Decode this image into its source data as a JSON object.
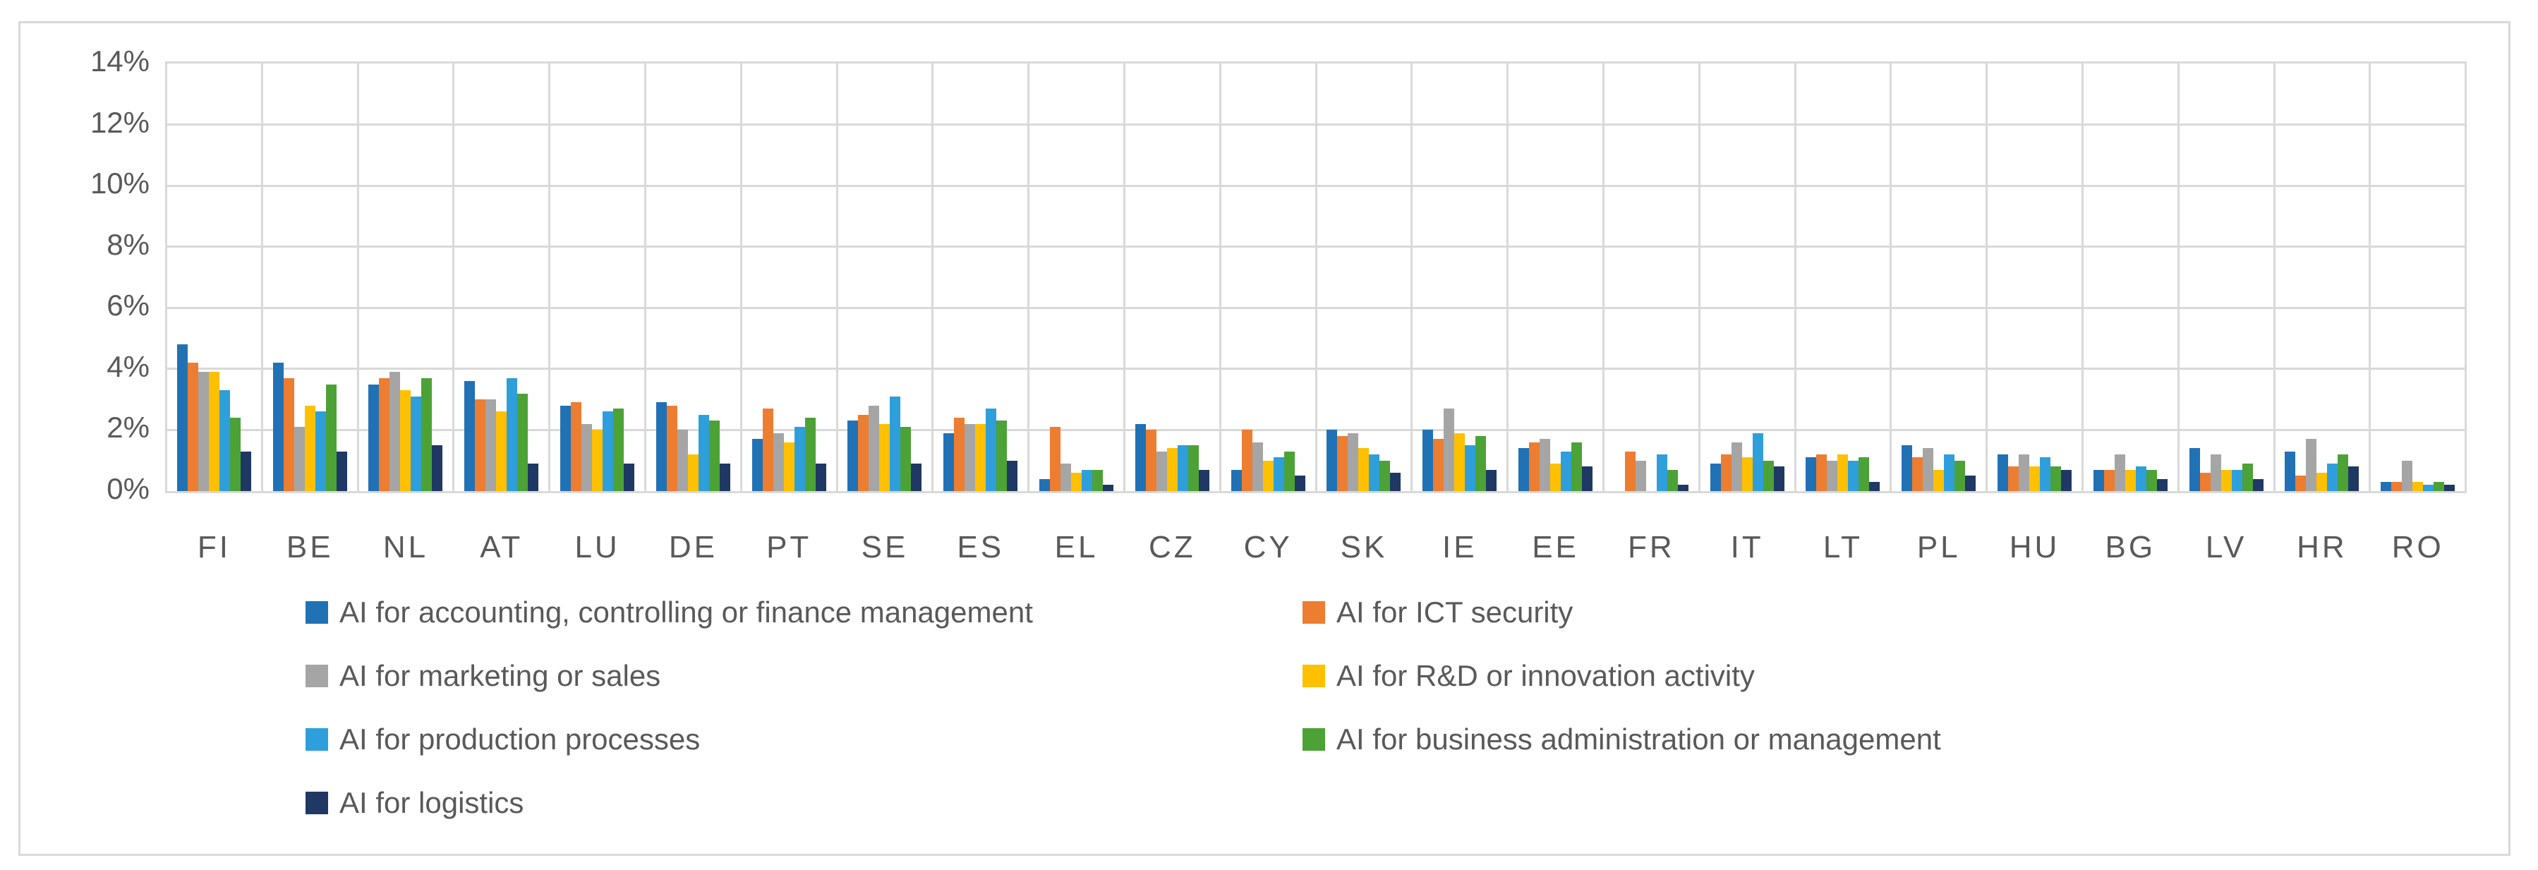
{
  "colors": {
    "background": "#ffffff",
    "frame_border": "#d9d9d9",
    "gridline": "#d9d9d9",
    "axis_text": "#595959"
  },
  "y_axis": {
    "tick_labels": [
      "14%",
      "12%",
      "10%",
      "8%",
      "6%",
      "4%",
      "2%",
      "0%"
    ]
  },
  "chart_data": {
    "type": "bar",
    "title": "",
    "xlabel": "",
    "ylabel": "",
    "unit": "%",
    "ylim": [
      0,
      14
    ],
    "ytick_step": 2,
    "grid": true,
    "legend_position": "bottom-two-columns",
    "categories": [
      "FI",
      "BE",
      "NL",
      "AT",
      "LU",
      "DE",
      "PT",
      "SE",
      "ES",
      "EL",
      "CZ",
      "CY",
      "SK",
      "IE",
      "EE",
      "FR",
      "IT",
      "LT",
      "PL",
      "HU",
      "BG",
      "LV",
      "HR",
      "RO"
    ],
    "series": [
      {
        "name": "AI for accounting, controlling or finance management",
        "color": "#2171b5",
        "values": [
          4.8,
          4.2,
          3.5,
          3.6,
          2.8,
          2.9,
          1.7,
          2.3,
          1.9,
          0.4,
          2.2,
          0.7,
          2.0,
          2.0,
          1.4,
          0.0,
          0.9,
          1.1,
          1.5,
          1.2,
          0.7,
          1.4,
          1.3,
          0.3
        ]
      },
      {
        "name": "AI for ICT security",
        "color": "#ed7d31",
        "values": [
          4.2,
          3.7,
          3.7,
          3.0,
          2.9,
          2.8,
          2.7,
          2.5,
          2.4,
          2.1,
          2.0,
          2.0,
          1.8,
          1.7,
          1.6,
          1.3,
          1.2,
          1.2,
          1.1,
          0.8,
          0.7,
          0.6,
          0.5,
          0.3
        ]
      },
      {
        "name": "AI for marketing or sales",
        "color": "#a5a5a5",
        "values": [
          3.9,
          2.1,
          3.9,
          3.0,
          2.2,
          2.0,
          1.9,
          2.8,
          2.2,
          0.9,
          1.3,
          1.6,
          1.9,
          2.7,
          1.7,
          1.0,
          1.6,
          1.0,
          1.4,
          1.2,
          1.2,
          1.2,
          1.7,
          1.0
        ]
      },
      {
        "name": "AI for R&D or innovation activity",
        "color": "#ffc000",
        "values": [
          3.9,
          2.8,
          3.3,
          2.6,
          2.0,
          1.2,
          1.6,
          2.2,
          2.2,
          0.6,
          1.4,
          1.0,
          1.4,
          1.9,
          0.9,
          0.0,
          1.1,
          1.2,
          0.7,
          0.8,
          0.7,
          0.7,
          0.6,
          0.3
        ]
      },
      {
        "name": "AI for production processes",
        "color": "#2e9fda",
        "values": [
          3.3,
          2.6,
          3.1,
          3.7,
          2.6,
          2.5,
          2.1,
          3.1,
          2.7,
          0.7,
          1.5,
          1.1,
          1.2,
          1.5,
          1.3,
          1.2,
          1.9,
          1.0,
          1.2,
          1.1,
          0.8,
          0.7,
          0.9,
          0.2
        ]
      },
      {
        "name": "AI for business administration or management",
        "color": "#4ca236",
        "values": [
          2.4,
          3.5,
          3.7,
          3.2,
          2.7,
          2.3,
          2.4,
          2.1,
          2.3,
          0.7,
          1.5,
          1.3,
          1.0,
          1.8,
          1.6,
          0.7,
          1.0,
          1.1,
          1.0,
          0.8,
          0.7,
          0.9,
          1.2,
          0.3
        ]
      },
      {
        "name": "AI for logistics",
        "color": "#1f3864",
        "values": [
          1.3,
          1.3,
          1.5,
          0.9,
          0.9,
          0.9,
          0.9,
          0.9,
          1.0,
          0.2,
          0.7,
          0.5,
          0.6,
          0.7,
          0.8,
          0.2,
          0.8,
          0.3,
          0.5,
          0.7,
          0.4,
          0.4,
          0.8,
          0.2
        ]
      }
    ]
  }
}
